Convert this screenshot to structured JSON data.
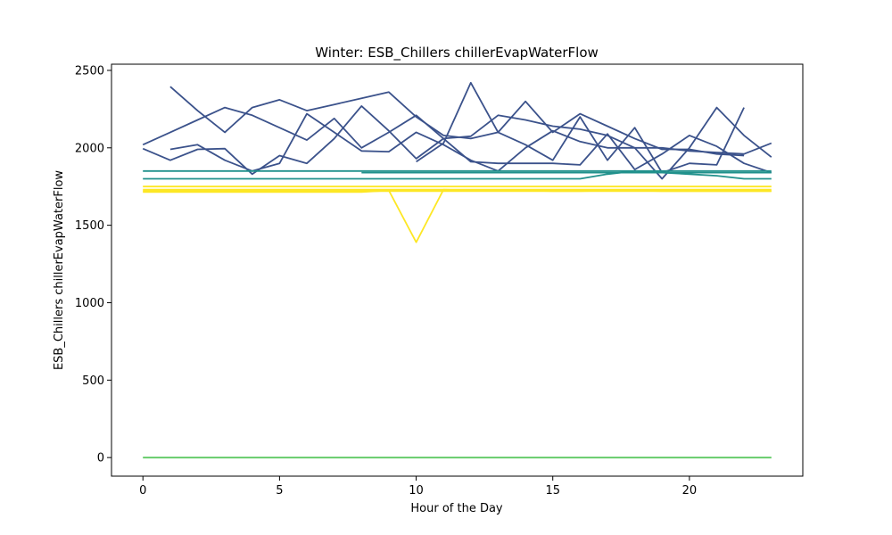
{
  "chart_data": {
    "type": "line",
    "title": "Winter: ESB_Chillers chillerEvapWaterFlow",
    "xlabel": "Hour of the Day",
    "ylabel": "ESB_Chillers chillerEvapWaterFlow",
    "xlim": [
      -1.15,
      24.15
    ],
    "ylim": [
      -120,
      2540
    ],
    "xticks": [
      0,
      5,
      10,
      15,
      20
    ],
    "yticks": [
      0,
      500,
      1000,
      1500,
      2000,
      2500
    ],
    "grid": false,
    "legend": "none",
    "colors": {
      "dark_blue": "#3b528b",
      "teal": "#21918c",
      "green": "#5ec962",
      "yellow": "#fde725"
    },
    "series": [
      {
        "color": "#3b528b",
        "x": [
          0,
          1,
          2,
          3,
          4,
          5,
          6,
          7,
          8,
          9,
          10,
          11,
          12,
          13,
          14,
          15,
          16,
          17,
          18,
          19,
          20,
          21,
          22,
          23
        ],
        "y": [
          2020,
          2100,
          2180,
          2260,
          2210,
          2130,
          2050,
          2190,
          2000,
          2100,
          2210,
          2060,
          1910,
          1900,
          1900,
          1900,
          1890,
          2090,
          1860,
          1960,
          2080,
          2010,
          1900,
          1840
        ]
      },
      {
        "color": "#3b528b",
        "x": [
          1,
          2,
          3,
          4,
          5,
          6,
          7,
          8,
          9,
          10,
          11,
          12,
          13,
          14,
          15,
          16,
          17,
          18,
          19,
          20,
          21,
          22
        ],
        "y": [
          2395,
          2240,
          2100,
          2260,
          2310,
          2240,
          2280,
          2320,
          2360,
          2200,
          2080,
          2060,
          2100,
          2300,
          2100,
          2220,
          2140,
          2060,
          1990,
          1990,
          1960,
          1950
        ]
      },
      {
        "color": "#3b528b",
        "x": [
          0,
          1,
          2,
          3,
          4,
          5,
          6,
          7,
          8,
          9,
          10,
          11,
          12,
          13,
          14,
          15,
          16,
          17,
          18,
          19,
          20,
          21,
          22,
          23
        ],
        "y": [
          1995,
          1920,
          1990,
          1995,
          1830,
          1950,
          1900,
          2060,
          2270,
          2110,
          1930,
          2060,
          2075,
          2210,
          2180,
          2140,
          2120,
          2080,
          2000,
          1800,
          2000,
          2260,
          2080,
          1940
        ]
      },
      {
        "color": "#3b528b",
        "x": [
          1,
          2,
          3,
          4,
          5,
          6,
          7,
          8,
          9,
          10,
          11,
          12,
          13,
          14,
          15,
          16,
          17,
          18,
          19,
          20,
          21,
          22,
          23
        ],
        "y": [
          1990,
          2020,
          1920,
          1850,
          1900,
          2220,
          2100,
          1980,
          1975,
          2100,
          2020,
          1920,
          1850,
          2000,
          2110,
          2040,
          2000,
          2000,
          2000,
          1980,
          1970,
          1960,
          2030
        ]
      },
      {
        "color": "#3b528b",
        "x": [
          10,
          11,
          12,
          13,
          14,
          15,
          16,
          17,
          18,
          19,
          20,
          21,
          22
        ],
        "y": [
          1910,
          2030,
          2420,
          2100,
          2020,
          1920,
          2200,
          1920,
          2130,
          1840,
          1900,
          1890,
          2260
        ]
      },
      {
        "color": "#21918c",
        "x": [
          0,
          1,
          2,
          3,
          4,
          5,
          6,
          7,
          8,
          9,
          10,
          11,
          12,
          13,
          14,
          15,
          16,
          17,
          18,
          19,
          20,
          21,
          22,
          23
        ],
        "y": [
          1850,
          1850,
          1850,
          1850,
          1850,
          1850,
          1850,
          1850,
          1850,
          1850,
          1850,
          1850,
          1850,
          1850,
          1850,
          1850,
          1850,
          1850,
          1850,
          1850,
          1850,
          1850,
          1850,
          1850
        ]
      },
      {
        "color": "#21918c",
        "x": [
          0,
          1,
          2,
          3,
          4,
          5,
          6,
          7,
          8,
          9,
          10,
          11,
          12,
          13,
          14,
          15,
          16,
          17,
          18,
          19,
          20,
          21,
          22,
          23
        ],
        "y": [
          1800,
          1800,
          1800,
          1800,
          1800,
          1800,
          1800,
          1800,
          1800,
          1800,
          1800,
          1800,
          1800,
          1800,
          1800,
          1800,
          1800,
          1830,
          1850,
          1840,
          1830,
          1820,
          1800,
          1800
        ]
      },
      {
        "color": "#21918c",
        "x": [
          8,
          9,
          10,
          11,
          12,
          13,
          14,
          15,
          16,
          17,
          18,
          19,
          20,
          21,
          22,
          23
        ],
        "y": [
          1840,
          1840,
          1840,
          1840,
          1840,
          1840,
          1840,
          1840,
          1840,
          1840,
          1840,
          1840,
          1840,
          1840,
          1840,
          1840
        ]
      },
      {
        "color": "#5ec962",
        "x": [
          0,
          1,
          2,
          3,
          4,
          5,
          6,
          7,
          8,
          9,
          10,
          11,
          12,
          13,
          14,
          15,
          16,
          17,
          18,
          19,
          20,
          21,
          22,
          23
        ],
        "y": [
          0,
          0,
          0,
          0,
          0,
          0,
          0,
          0,
          0,
          0,
          0,
          0,
          0,
          0,
          0,
          0,
          0,
          0,
          0,
          0,
          0,
          0,
          0,
          0
        ]
      },
      {
        "color": "#fde725",
        "x": [
          0,
          1,
          2,
          3,
          4,
          5,
          6,
          7,
          8,
          9,
          10,
          11,
          12,
          13,
          14,
          15,
          16,
          17,
          18,
          19,
          20,
          21,
          22,
          23
        ],
        "y": [
          1750,
          1750,
          1750,
          1750,
          1750,
          1750,
          1750,
          1750,
          1750,
          1750,
          1750,
          1750,
          1750,
          1750,
          1750,
          1750,
          1750,
          1750,
          1750,
          1750,
          1750,
          1750,
          1750,
          1750
        ]
      },
      {
        "color": "#fde725",
        "x": [
          0,
          1,
          2,
          3,
          4,
          5,
          6,
          7,
          8,
          9,
          10,
          11,
          12,
          13,
          14,
          15,
          16,
          17,
          18,
          19,
          20,
          21,
          22,
          23
        ],
        "y": [
          1730,
          1730,
          1730,
          1730,
          1730,
          1730,
          1730,
          1730,
          1730,
          1730,
          1730,
          1730,
          1730,
          1730,
          1730,
          1730,
          1730,
          1730,
          1730,
          1730,
          1730,
          1730,
          1730,
          1730
        ]
      },
      {
        "color": "#fde725",
        "x": [
          0,
          1,
          2,
          3,
          4,
          5,
          6,
          7,
          8,
          9,
          10,
          11,
          12,
          13,
          14,
          15,
          16,
          17,
          18,
          19,
          20,
          21,
          22,
          23
        ],
        "y": [
          1720,
          1720,
          1720,
          1720,
          1720,
          1720,
          1720,
          1720,
          1720,
          1720,
          1720,
          1720,
          1720,
          1720,
          1720,
          1720,
          1720,
          1720,
          1720,
          1720,
          1720,
          1720,
          1720,
          1720
        ]
      },
      {
        "color": "#fde725",
        "x": [
          0,
          1,
          2,
          3,
          4,
          5,
          6,
          7,
          8,
          9,
          10,
          11,
          12,
          13,
          14,
          15,
          16,
          17,
          18,
          19,
          20,
          21,
          22,
          23
        ],
        "y": [
          1715,
          1715,
          1715,
          1715,
          1715,
          1715,
          1715,
          1715,
          1715,
          1725,
          1390,
          1730,
          1725,
          1725,
          1725,
          1720,
          1720,
          1725,
          1725,
          1720,
          1720,
          1720,
          1720,
          1720
        ]
      }
    ]
  }
}
